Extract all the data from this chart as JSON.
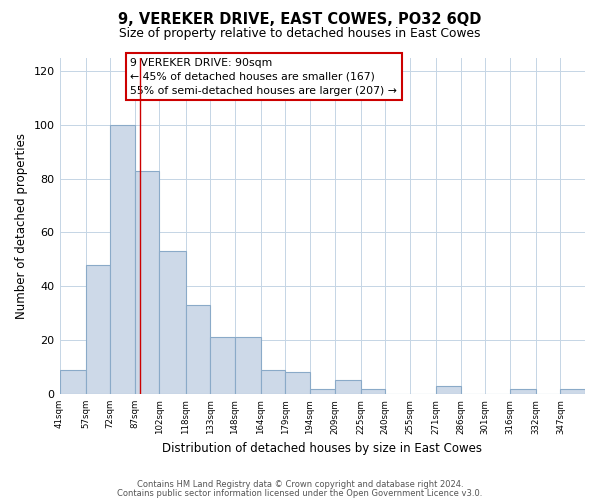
{
  "title": "9, VEREKER DRIVE, EAST COWES, PO32 6QD",
  "subtitle": "Size of property relative to detached houses in East Cowes",
  "xlabel": "Distribution of detached houses by size in East Cowes",
  "ylabel": "Number of detached properties",
  "bar_color": "#cdd9e8",
  "bar_edgecolor": "#8aaac8",
  "redline_x": 90,
  "categories": [
    "41sqm",
    "57sqm",
    "72sqm",
    "87sqm",
    "102sqm",
    "118sqm",
    "133sqm",
    "148sqm",
    "164sqm",
    "179sqm",
    "194sqm",
    "209sqm",
    "225sqm",
    "240sqm",
    "255sqm",
    "271sqm",
    "286sqm",
    "301sqm",
    "316sqm",
    "332sqm",
    "347sqm"
  ],
  "bin_edges": [
    41,
    57,
    72,
    87,
    102,
    118,
    133,
    148,
    164,
    179,
    194,
    209,
    225,
    240,
    255,
    271,
    286,
    301,
    316,
    332,
    347,
    362
  ],
  "values": [
    9,
    48,
    100,
    83,
    53,
    33,
    21,
    21,
    9,
    8,
    2,
    5,
    2,
    0,
    0,
    3,
    0,
    0,
    2,
    0,
    2
  ],
  "annotation_title": "9 VEREKER DRIVE: 90sqm",
  "annotation_line1": "← 45% of detached houses are smaller (167)",
  "annotation_line2": "55% of semi-detached houses are larger (207) →",
  "ylim": [
    0,
    125
  ],
  "yticks": [
    0,
    20,
    40,
    60,
    80,
    100,
    120
  ],
  "footnote1": "Contains HM Land Registry data © Crown copyright and database right 2024.",
  "footnote2": "Contains public sector information licensed under the Open Government Licence v3.0."
}
